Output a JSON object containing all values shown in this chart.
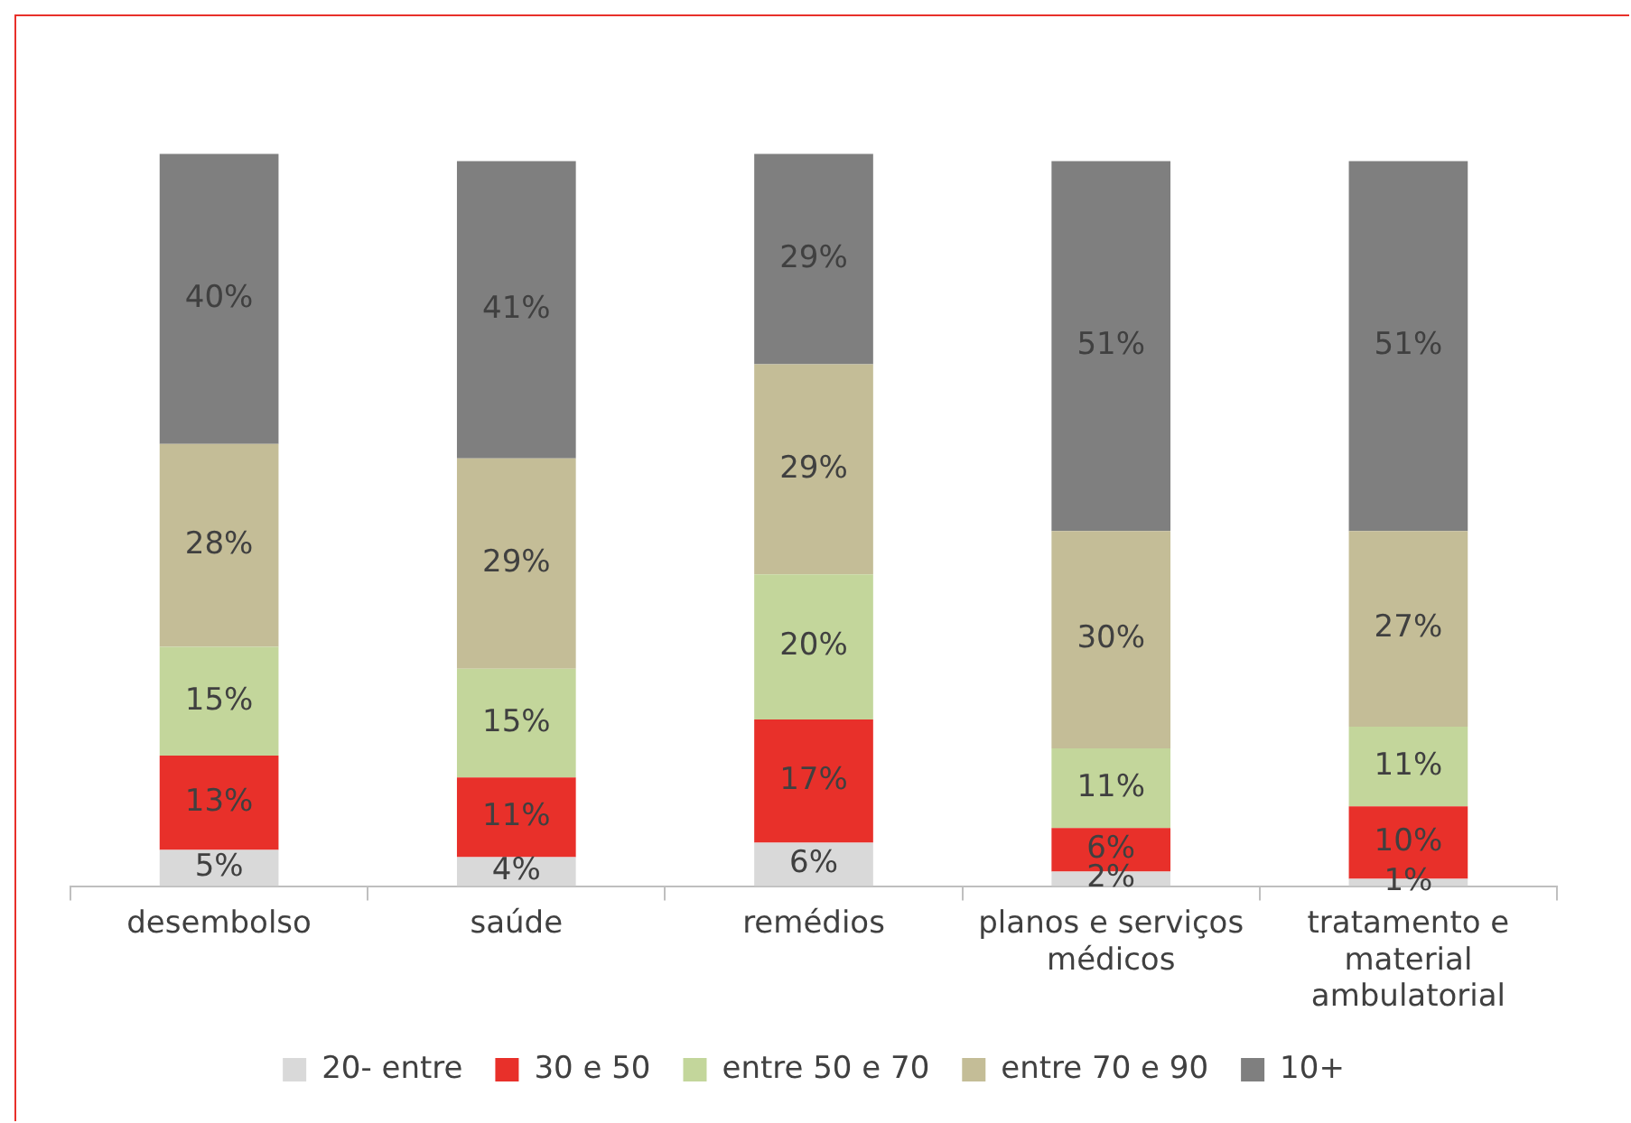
{
  "chart_data": {
    "type": "bar",
    "stacked": true,
    "grid": false,
    "legend": "bottom",
    "tick_labels": "x",
    "categories": [
      "desembolso",
      "saúde",
      "remédios",
      "planos e serviços médicos",
      "tratamento e material ambulatorial"
    ],
    "series": [
      {
        "name": "20- entre",
        "color": "#d9d9d9",
        "values": [
          5,
          4,
          6,
          2,
          1
        ],
        "value_labels": [
          "5%",
          "4%",
          "6%",
          "2%",
          "1%"
        ]
      },
      {
        "name": "30 e 50",
        "color": "#e8302a",
        "values": [
          13,
          11,
          17,
          6,
          10
        ],
        "value_labels": [
          "13%",
          "11%",
          "17%",
          "6%",
          "10%"
        ]
      },
      {
        "name": "entre 50 e 70",
        "color": "#c3d69b",
        "values": [
          15,
          15,
          20,
          11,
          11
        ],
        "value_labels": [
          "15%",
          "15%",
          "20%",
          "11%",
          "11%"
        ]
      },
      {
        "name": "entre 70 e 90",
        "color": "#c4bd97",
        "values": [
          28,
          29,
          29,
          30,
          27
        ],
        "value_labels": [
          "28%",
          "29%",
          "29%",
          "30%",
          "27%"
        ]
      },
      {
        "name": "10+",
        "color": "#7f7f7f",
        "values": [
          40,
          41,
          29,
          51,
          51
        ],
        "value_labels": [
          "40%",
          "41%",
          "29%",
          "51%",
          "51%"
        ]
      }
    ]
  }
}
